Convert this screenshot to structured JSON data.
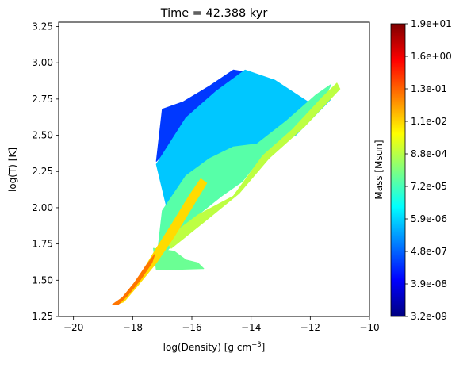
{
  "chart_data": {
    "type": "heatmap",
    "title": "Time = 42.388 kyr",
    "xlabel": "log(Density) [g cm",
    "xlabel_sup": "−3",
    "xlabel_end": "]",
    "ylabel": "log(T) [K]",
    "xlim": [
      -20.5,
      -10.0
    ],
    "ylim": [
      1.25,
      3.28
    ],
    "x_ticks": [
      -20,
      -18,
      -16,
      -14,
      -12,
      -10
    ],
    "x_tick_labels": [
      "−20",
      "−18",
      "−16",
      "−14",
      "−12",
      "−10"
    ],
    "y_ticks": [
      1.25,
      1.5,
      1.75,
      2.0,
      2.25,
      2.5,
      2.75,
      3.0,
      3.25
    ],
    "y_tick_labels": [
      "1.25",
      "1.50",
      "1.75",
      "2.00",
      "2.25",
      "2.50",
      "2.75",
      "3.00",
      "3.25"
    ],
    "grid": false,
    "colormap": "jet",
    "colorbar": {
      "label": "Mass [Msun]",
      "scale": "log",
      "tick_labels": [
        "3.2e-09",
        "3.9e-08",
        "4.8e-07",
        "5.9e-06",
        "7.2e-05",
        "8.8e-04",
        "1.1e-02",
        "1.3e-01",
        "1.6e+00",
        "1.9e+01"
      ]
    },
    "regions": [
      {
        "name": "hot-diffuse-cap",
        "level": 0.18,
        "points": [
          [
            -17.0,
            2.68
          ],
          [
            -16.3,
            2.73
          ],
          [
            -15.4,
            2.84
          ],
          [
            -14.6,
            2.95
          ],
          [
            -14.0,
            2.93
          ],
          [
            -14.4,
            2.7
          ],
          [
            -15.6,
            2.58
          ],
          [
            -16.6,
            2.45
          ],
          [
            -17.2,
            2.32
          ]
        ]
      },
      {
        "name": "upper-plume",
        "level": 0.32,
        "points": [
          [
            -17.2,
            2.3
          ],
          [
            -16.2,
            2.62
          ],
          [
            -15.2,
            2.8
          ],
          [
            -14.2,
            2.95
          ],
          [
            -13.2,
            2.88
          ],
          [
            -12.0,
            2.72
          ],
          [
            -11.6,
            2.78
          ],
          [
            -11.3,
            2.75
          ],
          [
            -12.5,
            2.5
          ],
          [
            -13.7,
            2.36
          ],
          [
            -14.5,
            2.2
          ],
          [
            -15.3,
            2.08
          ],
          [
            -16.0,
            2.02
          ],
          [
            -16.8,
            1.96
          ]
        ]
      },
      {
        "name": "mid-plume",
        "level": 0.46,
        "points": [
          [
            -17.0,
            1.98
          ],
          [
            -16.2,
            2.22
          ],
          [
            -15.4,
            2.34
          ],
          [
            -14.6,
            2.42
          ],
          [
            -13.8,
            2.44
          ],
          [
            -12.8,
            2.6
          ],
          [
            -11.8,
            2.78
          ],
          [
            -11.3,
            2.85
          ],
          [
            -11.6,
            2.72
          ],
          [
            -12.6,
            2.52
          ],
          [
            -13.6,
            2.36
          ],
          [
            -14.3,
            2.18
          ],
          [
            -15.0,
            2.08
          ],
          [
            -15.8,
            1.95
          ],
          [
            -16.5,
            1.78
          ],
          [
            -17.2,
            1.62
          ]
        ]
      },
      {
        "name": "cool-shelf",
        "level": 0.48,
        "points": [
          [
            -17.3,
            1.72
          ],
          [
            -16.6,
            1.7
          ],
          [
            -16.2,
            1.64
          ],
          [
            -15.8,
            1.62
          ],
          [
            -15.6,
            1.58
          ],
          [
            -17.2,
            1.57
          ]
        ]
      },
      {
        "name": "warm-band",
        "level": 0.56,
        "points": [
          [
            -16.9,
            1.78
          ],
          [
            -15.8,
            1.95
          ],
          [
            -14.6,
            2.08
          ],
          [
            -13.6,
            2.36
          ],
          [
            -12.6,
            2.54
          ],
          [
            -11.6,
            2.76
          ],
          [
            -11.1,
            2.86
          ],
          [
            -11.0,
            2.82
          ],
          [
            -12.2,
            2.56
          ],
          [
            -13.4,
            2.34
          ],
          [
            -14.4,
            2.1
          ],
          [
            -15.6,
            1.9
          ],
          [
            -16.7,
            1.72
          ]
        ]
      },
      {
        "name": "cooling-ridge",
        "level": 0.66,
        "points": [
          [
            -18.6,
            1.33
          ],
          [
            -18.3,
            1.38
          ],
          [
            -17.7,
            1.55
          ],
          [
            -17.2,
            1.72
          ],
          [
            -16.7,
            1.88
          ],
          [
            -16.1,
            2.08
          ],
          [
            -15.7,
            2.2
          ],
          [
            -15.5,
            2.17
          ],
          [
            -16.0,
            2.0
          ],
          [
            -16.6,
            1.8
          ],
          [
            -17.2,
            1.62
          ],
          [
            -17.8,
            1.47
          ],
          [
            -18.3,
            1.35
          ]
        ]
      },
      {
        "name": "cold-dense-tail",
        "level": 0.76,
        "points": [
          [
            -18.7,
            1.33
          ],
          [
            -18.35,
            1.38
          ],
          [
            -17.95,
            1.48
          ],
          [
            -17.55,
            1.6
          ],
          [
            -17.25,
            1.68
          ],
          [
            -17.35,
            1.62
          ],
          [
            -17.75,
            1.5
          ],
          [
            -18.15,
            1.4
          ],
          [
            -18.5,
            1.33
          ]
        ]
      }
    ]
  }
}
